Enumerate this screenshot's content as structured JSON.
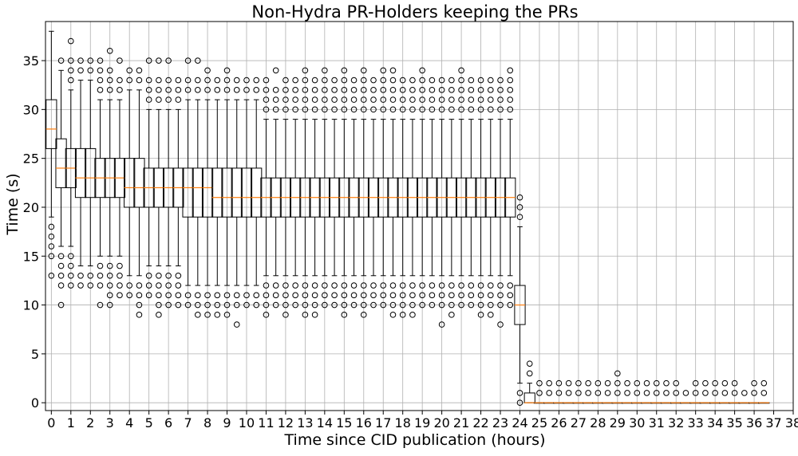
{
  "chart_data": {
    "type": "boxplot",
    "title": "Non-Hydra PR-Holders keeping the PRs",
    "xlabel": "Time since CID publication (hours)",
    "ylabel": "Time (s)",
    "xlim": [
      -0.3,
      38
    ],
    "ylim": [
      -0.8,
      39
    ],
    "grid": true,
    "x_ticks": [
      0,
      1,
      2,
      3,
      4,
      5,
      6,
      7,
      8,
      9,
      10,
      11,
      12,
      13,
      14,
      15,
      16,
      17,
      18,
      19,
      20,
      21,
      22,
      23,
      24,
      25,
      26,
      27,
      28,
      29,
      30,
      31,
      32,
      33,
      34,
      35,
      36,
      37,
      38
    ],
    "y_ticks": [
      0,
      5,
      10,
      15,
      20,
      25,
      30,
      35
    ],
    "colors": {
      "box": "#000000",
      "median": "#ff7f0e",
      "grid": "#b0b0b0",
      "flier": "#000000"
    },
    "boxes": [
      {
        "x": 0,
        "q1": 26,
        "median": 28,
        "q3": 31,
        "whislo": 19,
        "whishi": 38,
        "fliers": [
          13,
          15,
          16,
          17,
          18
        ]
      },
      {
        "x": 0.5,
        "q1": 22,
        "median": 24,
        "q3": 27,
        "whislo": 16,
        "whishi": 34,
        "fliers": [
          10,
          12,
          13,
          14,
          15,
          35
        ]
      },
      {
        "x": 1,
        "q1": 22,
        "median": 24,
        "q3": 26,
        "whislo": 16,
        "whishi": 32,
        "fliers": [
          12,
          13,
          14,
          15,
          33,
          34,
          35,
          37
        ]
      },
      {
        "x": 1.5,
        "q1": 21,
        "median": 23,
        "q3": 26,
        "whislo": 14,
        "whishi": 33,
        "fliers": [
          12,
          13,
          34,
          35
        ]
      },
      {
        "x": 2,
        "q1": 21,
        "median": 23,
        "q3": 26,
        "whislo": 14,
        "whishi": 33,
        "fliers": [
          12,
          13,
          34,
          35
        ]
      },
      {
        "x": 2.5,
        "q1": 21,
        "median": 23,
        "q3": 25,
        "whislo": 15,
        "whishi": 31,
        "fliers": [
          10,
          12,
          13,
          14,
          32,
          33,
          34,
          35
        ]
      },
      {
        "x": 3,
        "q1": 21,
        "median": 23,
        "q3": 25,
        "whislo": 15,
        "whishi": 31,
        "fliers": [
          10,
          11,
          12,
          13,
          14,
          32,
          33,
          34,
          36
        ]
      },
      {
        "x": 3.5,
        "q1": 21,
        "median": 23,
        "q3": 25,
        "whislo": 15,
        "whishi": 31,
        "fliers": [
          11,
          12,
          13,
          14,
          32,
          33,
          35
        ]
      },
      {
        "x": 4,
        "q1": 20,
        "median": 22,
        "q3": 25,
        "whislo": 13,
        "whishi": 32,
        "fliers": [
          11,
          12,
          33,
          34
        ]
      },
      {
        "x": 4.5,
        "q1": 20,
        "median": 22,
        "q3": 25,
        "whislo": 13,
        "whishi": 32,
        "fliers": [
          9,
          10,
          11,
          12,
          33,
          34
        ]
      },
      {
        "x": 5,
        "q1": 20,
        "median": 22,
        "q3": 24,
        "whislo": 14,
        "whishi": 30,
        "fliers": [
          11,
          12,
          13,
          31,
          32,
          33,
          35
        ]
      },
      {
        "x": 5.5,
        "q1": 20,
        "median": 22,
        "q3": 24,
        "whislo": 14,
        "whishi": 30,
        "fliers": [
          9,
          10,
          11,
          12,
          13,
          31,
          32,
          33,
          35
        ]
      },
      {
        "x": 6,
        "q1": 20,
        "median": 22,
        "q3": 24,
        "whislo": 14,
        "whishi": 30,
        "fliers": [
          10,
          11,
          12,
          13,
          31,
          32,
          33,
          35
        ]
      },
      {
        "x": 6.5,
        "q1": 20,
        "median": 22,
        "q3": 24,
        "whislo": 14,
        "whishi": 30,
        "fliers": [
          10,
          11,
          12,
          13,
          31,
          32,
          33
        ]
      },
      {
        "x": 7,
        "q1": 19,
        "median": 22,
        "q3": 24,
        "whislo": 12,
        "whishi": 31,
        "fliers": [
          10,
          11,
          32,
          33,
          35
        ]
      },
      {
        "x": 7.5,
        "q1": 19,
        "median": 22,
        "q3": 24,
        "whislo": 12,
        "whishi": 31,
        "fliers": [
          9,
          10,
          11,
          32,
          33,
          35
        ]
      },
      {
        "x": 8,
        "q1": 19,
        "median": 22,
        "q3": 24,
        "whislo": 12,
        "whishi": 31,
        "fliers": [
          9,
          10,
          11,
          32,
          33,
          34
        ]
      },
      {
        "x": 8.5,
        "q1": 19,
        "median": 21,
        "q3": 24,
        "whislo": 12,
        "whishi": 31,
        "fliers": [
          9,
          10,
          11,
          32,
          33
        ]
      },
      {
        "x": 9,
        "q1": 19,
        "median": 21,
        "q3": 24,
        "whislo": 12,
        "whishi": 31,
        "fliers": [
          9,
          10,
          11,
          32,
          33,
          34
        ]
      },
      {
        "x": 9.5,
        "q1": 19,
        "median": 21,
        "q3": 24,
        "whislo": 12,
        "whishi": 31,
        "fliers": [
          8,
          10,
          11,
          32,
          33
        ]
      },
      {
        "x": 10,
        "q1": 19,
        "median": 21,
        "q3": 24,
        "whislo": 12,
        "whishi": 31,
        "fliers": [
          10,
          11,
          32,
          33
        ]
      },
      {
        "x": 10.5,
        "q1": 19,
        "median": 21,
        "q3": 24,
        "whislo": 12,
        "whishi": 31,
        "fliers": [
          10,
          11,
          32,
          33
        ]
      },
      {
        "x": 11,
        "q1": 19,
        "median": 21,
        "q3": 23,
        "whislo": 13,
        "whishi": 29,
        "fliers": [
          9,
          10,
          11,
          12,
          30,
          31,
          32,
          33
        ]
      },
      {
        "x": 11.5,
        "q1": 19,
        "median": 21,
        "q3": 23,
        "whislo": 13,
        "whishi": 29,
        "fliers": [
          10,
          11,
          12,
          30,
          31,
          32,
          34
        ]
      },
      {
        "x": 12,
        "q1": 19,
        "median": 21,
        "q3": 23,
        "whislo": 13,
        "whishi": 29,
        "fliers": [
          9,
          10,
          11,
          12,
          30,
          31,
          32,
          33
        ]
      },
      {
        "x": 12.5,
        "q1": 19,
        "median": 21,
        "q3": 23,
        "whislo": 13,
        "whishi": 29,
        "fliers": [
          10,
          11,
          12,
          30,
          31,
          32,
          33
        ]
      },
      {
        "x": 13,
        "q1": 19,
        "median": 21,
        "q3": 23,
        "whislo": 13,
        "whishi": 29,
        "fliers": [
          9,
          10,
          11,
          12,
          30,
          31,
          32,
          33,
          34
        ]
      },
      {
        "x": 13.5,
        "q1": 19,
        "median": 21,
        "q3": 23,
        "whislo": 13,
        "whishi": 29,
        "fliers": [
          9,
          10,
          11,
          12,
          30,
          31,
          32,
          33
        ]
      },
      {
        "x": 14,
        "q1": 19,
        "median": 21,
        "q3": 23,
        "whislo": 13,
        "whishi": 29,
        "fliers": [
          10,
          11,
          12,
          30,
          31,
          32,
          33,
          34
        ]
      },
      {
        "x": 14.5,
        "q1": 19,
        "median": 21,
        "q3": 23,
        "whislo": 13,
        "whishi": 29,
        "fliers": [
          10,
          11,
          12,
          30,
          31,
          32,
          33
        ]
      },
      {
        "x": 15,
        "q1": 19,
        "median": 21,
        "q3": 23,
        "whislo": 13,
        "whishi": 29,
        "fliers": [
          9,
          10,
          11,
          12,
          30,
          31,
          32,
          33,
          34
        ]
      },
      {
        "x": 15.5,
        "q1": 19,
        "median": 21,
        "q3": 23,
        "whislo": 13,
        "whishi": 29,
        "fliers": [
          10,
          11,
          12,
          30,
          31,
          32,
          33
        ]
      },
      {
        "x": 16,
        "q1": 19,
        "median": 21,
        "q3": 23,
        "whislo": 13,
        "whishi": 29,
        "fliers": [
          9,
          10,
          11,
          12,
          30,
          31,
          32,
          33,
          34
        ]
      },
      {
        "x": 16.5,
        "q1": 19,
        "median": 21,
        "q3": 23,
        "whislo": 13,
        "whishi": 29,
        "fliers": [
          10,
          11,
          12,
          30,
          31,
          32,
          33
        ]
      },
      {
        "x": 17,
        "q1": 19,
        "median": 21,
        "q3": 23,
        "whislo": 13,
        "whishi": 29,
        "fliers": [
          10,
          11,
          12,
          30,
          31,
          32,
          33,
          34
        ]
      },
      {
        "x": 17.5,
        "q1": 19,
        "median": 21,
        "q3": 23,
        "whislo": 13,
        "whishi": 29,
        "fliers": [
          9,
          10,
          11,
          12,
          30,
          31,
          32,
          33,
          34
        ]
      },
      {
        "x": 18,
        "q1": 19,
        "median": 21,
        "q3": 23,
        "whislo": 13,
        "whishi": 29,
        "fliers": [
          9,
          10,
          11,
          12,
          30,
          31,
          32,
          33
        ]
      },
      {
        "x": 18.5,
        "q1": 19,
        "median": 21,
        "q3": 23,
        "whislo": 13,
        "whishi": 29,
        "fliers": [
          9,
          10,
          11,
          12,
          30,
          31,
          32,
          33
        ]
      },
      {
        "x": 19,
        "q1": 19,
        "median": 21,
        "q3": 23,
        "whislo": 13,
        "whishi": 29,
        "fliers": [
          10,
          11,
          12,
          30,
          31,
          32,
          33,
          34
        ]
      },
      {
        "x": 19.5,
        "q1": 19,
        "median": 21,
        "q3": 23,
        "whislo": 13,
        "whishi": 29,
        "fliers": [
          10,
          11,
          12,
          30,
          31,
          32,
          33
        ]
      },
      {
        "x": 20,
        "q1": 19,
        "median": 21,
        "q3": 23,
        "whislo": 13,
        "whishi": 29,
        "fliers": [
          8,
          10,
          11,
          12,
          30,
          31,
          32,
          33
        ]
      },
      {
        "x": 20.5,
        "q1": 19,
        "median": 21,
        "q3": 23,
        "whislo": 13,
        "whishi": 29,
        "fliers": [
          9,
          10,
          11,
          12,
          30,
          31,
          32,
          33
        ]
      },
      {
        "x": 21,
        "q1": 19,
        "median": 21,
        "q3": 23,
        "whislo": 13,
        "whishi": 29,
        "fliers": [
          10,
          11,
          12,
          30,
          31,
          32,
          33,
          34
        ]
      },
      {
        "x": 21.5,
        "q1": 19,
        "median": 21,
        "q3": 23,
        "whislo": 13,
        "whishi": 29,
        "fliers": [
          10,
          11,
          12,
          30,
          31,
          32,
          33
        ]
      },
      {
        "x": 22,
        "q1": 19,
        "median": 21,
        "q3": 23,
        "whislo": 13,
        "whishi": 29,
        "fliers": [
          9,
          10,
          11,
          12,
          30,
          31,
          32,
          33
        ]
      },
      {
        "x": 22.5,
        "q1": 19,
        "median": 21,
        "q3": 23,
        "whislo": 13,
        "whishi": 29,
        "fliers": [
          9,
          10,
          11,
          12,
          30,
          31,
          32,
          33
        ]
      },
      {
        "x": 23,
        "q1": 19,
        "median": 21,
        "q3": 23,
        "whislo": 13,
        "whishi": 29,
        "fliers": [
          8,
          10,
          11,
          12,
          30,
          31,
          32,
          33
        ]
      },
      {
        "x": 23.5,
        "q1": 19,
        "median": 21,
        "q3": 23,
        "whislo": 13,
        "whishi": 29,
        "fliers": [
          10,
          11,
          12,
          30,
          31,
          32,
          33,
          34
        ]
      },
      {
        "x": 24,
        "q1": 8,
        "median": 10,
        "q3": 12,
        "whislo": 2,
        "whishi": 18,
        "fliers": [
          0,
          1,
          19,
          20,
          21
        ]
      },
      {
        "x": 24.5,
        "q1": 0,
        "median": 0,
        "q3": 1,
        "whislo": 0,
        "whishi": 2,
        "fliers": [
          3,
          4
        ]
      },
      {
        "x": 25,
        "q1": 0,
        "median": 0,
        "q3": 0,
        "whislo": 0,
        "whishi": 0,
        "fliers": [
          1,
          2
        ]
      },
      {
        "x": 25.5,
        "q1": 0,
        "median": 0,
        "q3": 0,
        "whislo": 0,
        "whishi": 0,
        "fliers": [
          1,
          2
        ]
      },
      {
        "x": 26,
        "q1": 0,
        "median": 0,
        "q3": 0,
        "whislo": 0,
        "whishi": 0,
        "fliers": [
          1,
          2
        ]
      },
      {
        "x": 26.5,
        "q1": 0,
        "median": 0,
        "q3": 0,
        "whislo": 0,
        "whishi": 0,
        "fliers": [
          1,
          2
        ]
      },
      {
        "x": 27,
        "q1": 0,
        "median": 0,
        "q3": 0,
        "whislo": 0,
        "whishi": 0,
        "fliers": [
          1,
          2
        ]
      },
      {
        "x": 27.5,
        "q1": 0,
        "median": 0,
        "q3": 0,
        "whislo": 0,
        "whishi": 0,
        "fliers": [
          1,
          2
        ]
      },
      {
        "x": 28,
        "q1": 0,
        "median": 0,
        "q3": 0,
        "whislo": 0,
        "whishi": 0,
        "fliers": [
          1,
          2
        ]
      },
      {
        "x": 28.5,
        "q1": 0,
        "median": 0,
        "q3": 0,
        "whislo": 0,
        "whishi": 0,
        "fliers": [
          1,
          2
        ]
      },
      {
        "x": 29,
        "q1": 0,
        "median": 0,
        "q3": 0,
        "whislo": 0,
        "whishi": 0,
        "fliers": [
          1,
          2,
          3
        ]
      },
      {
        "x": 29.5,
        "q1": 0,
        "median": 0,
        "q3": 0,
        "whislo": 0,
        "whishi": 0,
        "fliers": [
          1,
          2
        ]
      },
      {
        "x": 30,
        "q1": 0,
        "median": 0,
        "q3": 0,
        "whislo": 0,
        "whishi": 0,
        "fliers": [
          1,
          2
        ]
      },
      {
        "x": 30.5,
        "q1": 0,
        "median": 0,
        "q3": 0,
        "whislo": 0,
        "whishi": 0,
        "fliers": [
          1,
          2
        ]
      },
      {
        "x": 31,
        "q1": 0,
        "median": 0,
        "q3": 0,
        "whislo": 0,
        "whishi": 0,
        "fliers": [
          1,
          2
        ]
      },
      {
        "x": 31.5,
        "q1": 0,
        "median": 0,
        "q3": 0,
        "whislo": 0,
        "whishi": 0,
        "fliers": [
          1,
          2
        ]
      },
      {
        "x": 32,
        "q1": 0,
        "median": 0,
        "q3": 0,
        "whislo": 0,
        "whishi": 0,
        "fliers": [
          1,
          2
        ]
      },
      {
        "x": 32.5,
        "q1": 0,
        "median": 0,
        "q3": 0,
        "whislo": 0,
        "whishi": 0,
        "fliers": [
          1
        ]
      },
      {
        "x": 33,
        "q1": 0,
        "median": 0,
        "q3": 0,
        "whislo": 0,
        "whishi": 0,
        "fliers": [
          1,
          2
        ]
      },
      {
        "x": 33.5,
        "q1": 0,
        "median": 0,
        "q3": 0,
        "whislo": 0,
        "whishi": 0,
        "fliers": [
          1,
          2
        ]
      },
      {
        "x": 34,
        "q1": 0,
        "median": 0,
        "q3": 0,
        "whislo": 0,
        "whishi": 0,
        "fliers": [
          1,
          2
        ]
      },
      {
        "x": 34.5,
        "q1": 0,
        "median": 0,
        "q3": 0,
        "whislo": 0,
        "whishi": 0,
        "fliers": [
          1,
          2
        ]
      },
      {
        "x": 35,
        "q1": 0,
        "median": 0,
        "q3": 0,
        "whislo": 0,
        "whishi": 0,
        "fliers": [
          1,
          2
        ]
      },
      {
        "x": 35.5,
        "q1": 0,
        "median": 0,
        "q3": 0,
        "whislo": 0,
        "whishi": 0,
        "fliers": [
          1
        ]
      },
      {
        "x": 36,
        "q1": 0,
        "median": 0,
        "q3": 0,
        "whislo": 0,
        "whishi": 0,
        "fliers": [
          1,
          2
        ]
      },
      {
        "x": 36.5,
        "q1": 0,
        "median": 0,
        "q3": 0,
        "whislo": 0,
        "whishi": 0,
        "fliers": [
          1,
          2
        ]
      }
    ]
  }
}
